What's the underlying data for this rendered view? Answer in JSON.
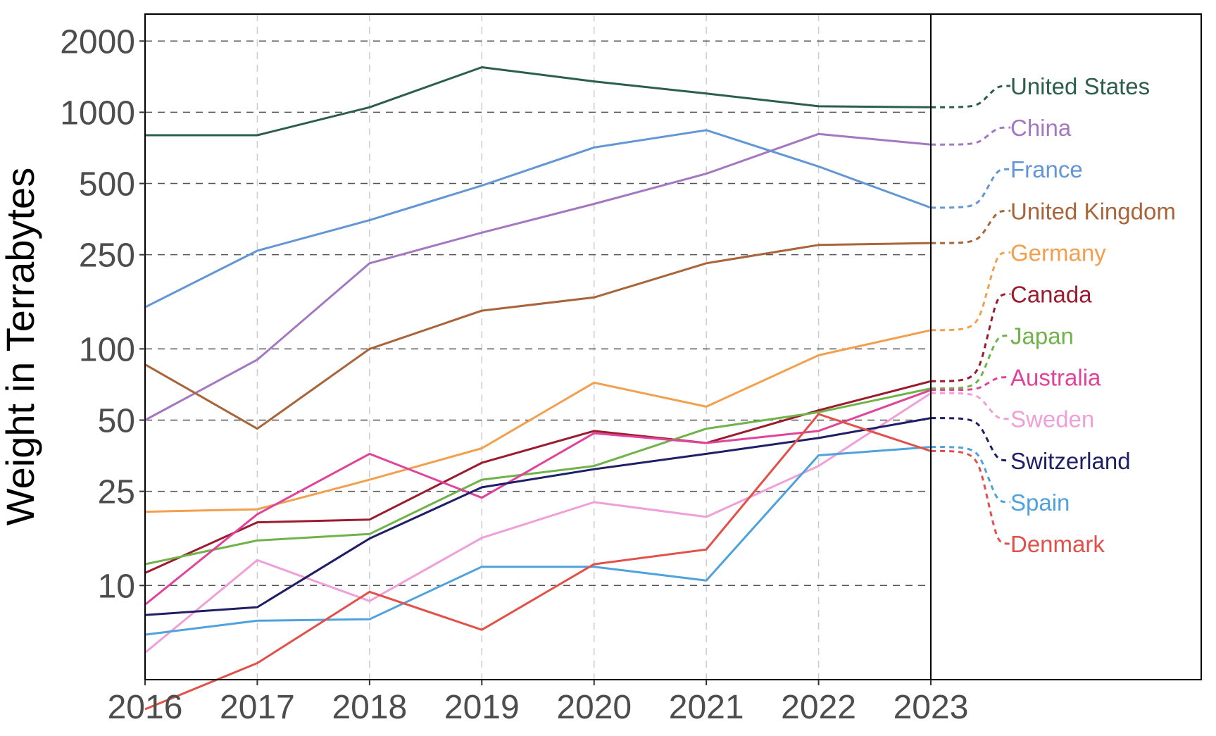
{
  "chart_data": {
    "type": "line",
    "ylabel": "Weight in Terrabytes",
    "xlabel": "",
    "y_scale": "log",
    "ylim": [
      4,
      2600
    ],
    "xlim": [
      2016,
      2023
    ],
    "x": [
      2016,
      2017,
      2018,
      2019,
      2020,
      2021,
      2022,
      2023
    ],
    "x_tick_labels": [
      "2016",
      "2017",
      "2018",
      "2019",
      "2020",
      "2021",
      "2022",
      "2023"
    ],
    "y_ticks": [
      10,
      25,
      50,
      100,
      250,
      500,
      1000,
      2000
    ],
    "y_tick_labels": [
      "10",
      "25",
      "50",
      "100",
      "250",
      "500",
      "1000",
      "2000"
    ],
    "grid": true,
    "legend": "direct labels on right side",
    "series": [
      {
        "name": "United States",
        "color": "#2c5e4c",
        "values": [
          800,
          800,
          1050,
          1550,
          1350,
          1200,
          1060,
          1050
        ]
      },
      {
        "name": "China",
        "color": "#a378c0",
        "values": [
          50,
          90,
          230,
          310,
          410,
          550,
          810,
          730
        ]
      },
      {
        "name": "France",
        "color": "#6396d4",
        "values": [
          150,
          260,
          350,
          490,
          710,
          840,
          590,
          395
        ]
      },
      {
        "name": "United Kingdom",
        "color": "#a8653a",
        "values": [
          86,
          46,
          100,
          145,
          165,
          230,
          275,
          280
        ]
      },
      {
        "name": "Germany",
        "color": "#f2a04e",
        "values": [
          20.5,
          21,
          28,
          38,
          72,
          57,
          94,
          120
        ]
      },
      {
        "name": "Canada",
        "color": "#9a1c2e",
        "values": [
          11.3,
          18.5,
          19,
          33,
          45,
          40,
          55,
          73
        ]
      },
      {
        "name": "Japan",
        "color": "#6fb34a",
        "values": [
          12.3,
          15.5,
          16.5,
          28,
          32,
          46,
          54,
          68
        ]
      },
      {
        "name": "Australia",
        "color": "#e0439a",
        "values": [
          8.3,
          20,
          36,
          23.5,
          44,
          40,
          45,
          67
        ]
      },
      {
        "name": "Sweden",
        "color": "#f0a0d8",
        "values": [
          5.2,
          12.8,
          8.6,
          15.9,
          22.5,
          19.5,
          32,
          65
        ]
      },
      {
        "name": "Switzerland",
        "color": "#1f1f66",
        "values": [
          7.5,
          8.1,
          15.8,
          26,
          31,
          36,
          42,
          51
        ]
      },
      {
        "name": "Spain",
        "color": "#4fa2dc",
        "values": [
          6.2,
          7.1,
          7.2,
          12,
          12,
          10.5,
          35.5,
          38.5
        ]
      },
      {
        "name": "Denmark",
        "color": "#e2504a",
        "values": [
          3.0,
          4.7,
          9.4,
          6.5,
          12.3,
          14.2,
          53,
          37
        ]
      }
    ]
  }
}
